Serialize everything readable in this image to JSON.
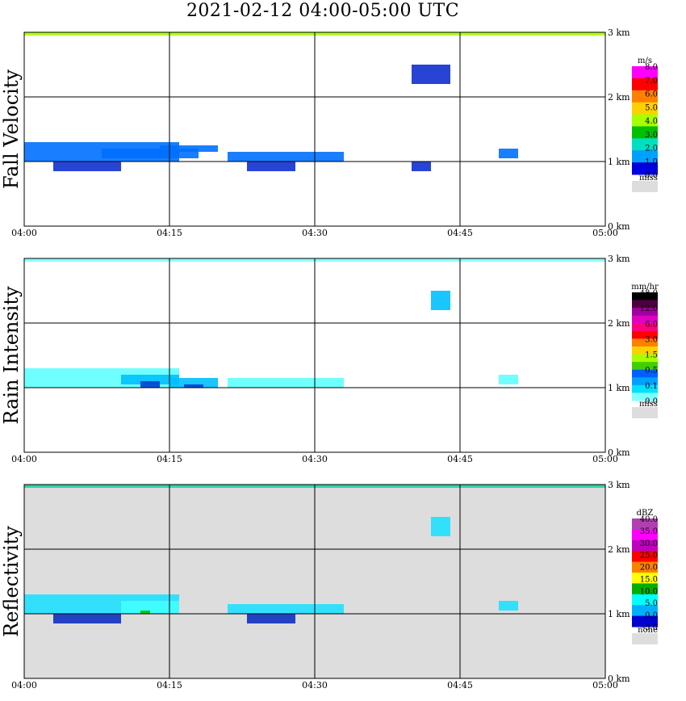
{
  "title": "2021-02-12   04:00-05:00 UTC",
  "chart_data": [
    {
      "type": "heatmap",
      "ylabel": "Fall Velocity",
      "x_ticks": [
        "04:00",
        "04:15",
        "04:30",
        "04:45",
        "05:00"
      ],
      "y_ticks": [
        "0 km",
        "1 km",
        "2 km",
        "3 km"
      ],
      "xlim": [
        "04:00",
        "05:00"
      ],
      "ylim_km": [
        0,
        3.0
      ],
      "background": "#ffffff",
      "legend": {
        "unit": "m/s",
        "labels": [
          "8.0",
          "7.0",
          "6.0",
          "5.0",
          "4.0",
          "3.0",
          "2.0",
          "1.0",
          "0.0"
        ],
        "colors": [
          "#ff00ff",
          "#ff0000",
          "#ff8000",
          "#ffd000",
          "#a8ff00",
          "#00c000",
          "#00e0c0",
          "#00a0ff",
          "#0000e0"
        ],
        "missing_label": "miss",
        "missing_color": "#dddddd"
      },
      "features": [
        {
          "t": [
            0,
            16
          ],
          "z": [
            1.0,
            1.3
          ],
          "color": "#0070ff"
        },
        {
          "t": [
            3,
            10
          ],
          "z": [
            0.85,
            1.0
          ],
          "color": "#1030d0"
        },
        {
          "t": [
            8,
            18
          ],
          "z": [
            1.05,
            1.2
          ],
          "color": "#0070ff"
        },
        {
          "t": [
            14,
            20
          ],
          "z": [
            1.15,
            1.25
          ],
          "color": "#0070ff"
        },
        {
          "t": [
            21,
            33
          ],
          "z": [
            1.0,
            1.15
          ],
          "color": "#0070ff"
        },
        {
          "t": [
            23,
            28
          ],
          "z": [
            0.85,
            1.0
          ],
          "color": "#1030d0"
        },
        {
          "t": [
            40,
            42
          ],
          "z": [
            0.85,
            1.0
          ],
          "color": "#1030d0"
        },
        {
          "t": [
            40,
            44
          ],
          "z": [
            2.2,
            2.5
          ],
          "color": "#1030d0"
        },
        {
          "t": [
            49,
            51
          ],
          "z": [
            1.05,
            1.2
          ],
          "color": "#0070ff"
        },
        {
          "t": [
            0,
            60
          ],
          "z": [
            2.95,
            3.0
          ],
          "color": "#a8ff00"
        }
      ]
    },
    {
      "type": "heatmap",
      "ylabel": "Rain Intensity",
      "x_ticks": [
        "04:00",
        "04:15",
        "04:30",
        "04:45",
        "05:00"
      ],
      "y_ticks": [
        "0 km",
        "1 km",
        "2 km",
        "3 km"
      ],
      "xlim": [
        "04:00",
        "05:00"
      ],
      "ylim_km": [
        0,
        3.0
      ],
      "background": "#ffffff",
      "legend": {
        "unit": "mm/hr",
        "labels": [
          "48.0",
          "12.0",
          "6.0",
          "3.0",
          "1.5",
          "0.5",
          "0.1",
          "0.0"
        ],
        "colors": [
          "#000000",
          "#500040",
          "#a000a0",
          "#e000c0",
          "#ff0080",
          "#ff0000",
          "#ff8000",
          "#ffd000",
          "#a8ff00",
          "#40d000",
          "#0060ff",
          "#00a0ff",
          "#00e0ff",
          "#80ffff"
        ],
        "missing_label": "miss",
        "missing_color": "#dddddd"
      },
      "features": [
        {
          "t": [
            0,
            16
          ],
          "z": [
            1.0,
            1.3
          ],
          "color": "#60ffff"
        },
        {
          "t": [
            10,
            16
          ],
          "z": [
            1.05,
            1.2
          ],
          "color": "#00c0ff"
        },
        {
          "t": [
            12,
            14
          ],
          "z": [
            1.0,
            1.1
          ],
          "color": "#0040d0"
        },
        {
          "t": [
            15,
            20
          ],
          "z": [
            1.0,
            1.15
          ],
          "color": "#00c0ff"
        },
        {
          "t": [
            16.5,
            18.5
          ],
          "z": [
            1.0,
            1.05
          ],
          "color": "#0040d0"
        },
        {
          "t": [
            21,
            33
          ],
          "z": [
            1.0,
            1.15
          ],
          "color": "#60ffff"
        },
        {
          "t": [
            42,
            44
          ],
          "z": [
            2.2,
            2.5
          ],
          "color": "#00c0ff"
        },
        {
          "t": [
            49,
            51
          ],
          "z": [
            1.05,
            1.2
          ],
          "color": "#60ffff"
        },
        {
          "t": [
            0,
            60
          ],
          "z": [
            2.95,
            3.0
          ],
          "color": "#80ffff"
        }
      ]
    },
    {
      "type": "heatmap",
      "ylabel": "Reflectivity",
      "x_ticks": [
        "04:00",
        "04:15",
        "04:30",
        "04:45",
        "05:00"
      ],
      "y_ticks": [
        "0 km",
        "1 km",
        "2 km",
        "3 km"
      ],
      "xlim": [
        "04:00",
        "05:00"
      ],
      "ylim_km": [
        0,
        3.0
      ],
      "background": "#dddddd",
      "legend": {
        "unit": "dBZ",
        "labels": [
          "40.0",
          "35.0",
          "30.0",
          "25.0",
          "20.0",
          "15.0",
          "10.0",
          "5.0",
          "0.0",
          "-5.0"
        ],
        "colors": [
          "#b040b0",
          "#ff00ff",
          "#c000c0",
          "#ff0000",
          "#ff8000",
          "#ffff00",
          "#00b000",
          "#00ffff",
          "#00b0ff",
          "#0000d0"
        ],
        "missing_label": "none",
        "missing_color": "#dddddd"
      },
      "features": [
        {
          "t": [
            0,
            16
          ],
          "z": [
            1.0,
            1.3
          ],
          "color": "#20e0ff"
        },
        {
          "t": [
            3,
            10
          ],
          "z": [
            0.85,
            1.0
          ],
          "color": "#1030c0"
        },
        {
          "t": [
            10,
            16
          ],
          "z": [
            1.0,
            1.2
          ],
          "color": "#40ffff"
        },
        {
          "t": [
            12,
            13
          ],
          "z": [
            1.0,
            1.05
          ],
          "color": "#00c000"
        },
        {
          "t": [
            21,
            33
          ],
          "z": [
            1.0,
            1.15
          ],
          "color": "#20e0ff"
        },
        {
          "t": [
            23,
            28
          ],
          "z": [
            0.85,
            1.0
          ],
          "color": "#1030c0"
        },
        {
          "t": [
            42,
            44
          ],
          "z": [
            2.2,
            2.5
          ],
          "color": "#20e0ff"
        },
        {
          "t": [
            49,
            51
          ],
          "z": [
            1.05,
            1.2
          ],
          "color": "#20e0ff"
        },
        {
          "t": [
            0,
            60
          ],
          "z": [
            2.95,
            3.0
          ],
          "color": "#20d0a0"
        }
      ]
    }
  ]
}
